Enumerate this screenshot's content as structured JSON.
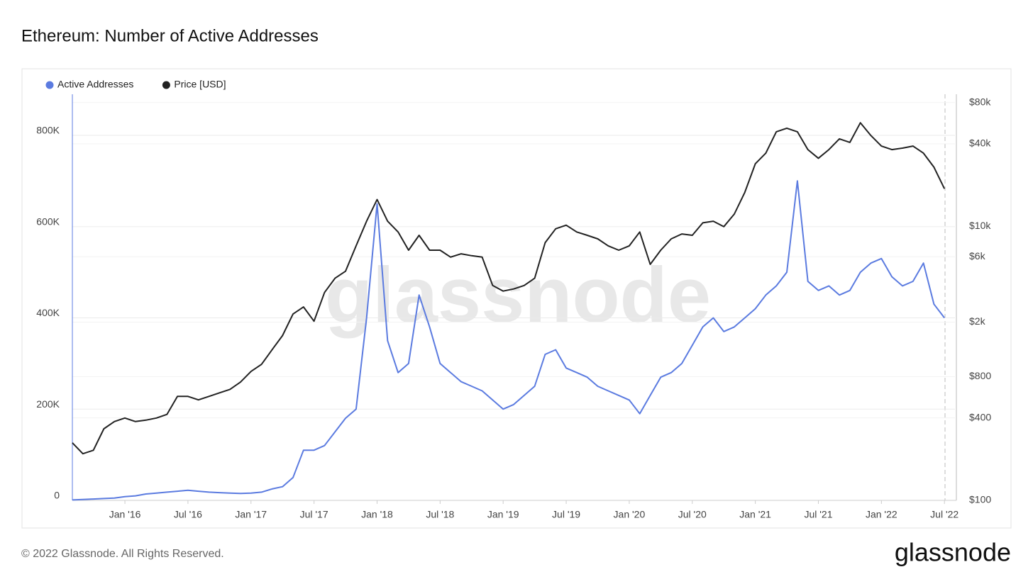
{
  "chart_data": {
    "type": "line",
    "title": "Ethereum: Number of Active Addresses",
    "watermark": "glassnode",
    "legend": "top-left",
    "grid": true,
    "x": [
      "2015-08",
      "2015-09",
      "2015-10",
      "2015-11",
      "2015-12",
      "2016-01",
      "2016-02",
      "2016-03",
      "2016-04",
      "2016-05",
      "2016-06",
      "2016-07",
      "2016-08",
      "2016-09",
      "2016-10",
      "2016-11",
      "2016-12",
      "2017-01",
      "2017-02",
      "2017-03",
      "2017-04",
      "2017-05",
      "2017-06",
      "2017-07",
      "2017-08",
      "2017-09",
      "2017-10",
      "2017-11",
      "2017-12",
      "2018-01",
      "2018-02",
      "2018-03",
      "2018-04",
      "2018-05",
      "2018-06",
      "2018-07",
      "2018-08",
      "2018-09",
      "2018-10",
      "2018-11",
      "2018-12",
      "2019-01",
      "2019-02",
      "2019-03",
      "2019-04",
      "2019-05",
      "2019-06",
      "2019-07",
      "2019-08",
      "2019-09",
      "2019-10",
      "2019-11",
      "2019-12",
      "2020-01",
      "2020-02",
      "2020-03",
      "2020-04",
      "2020-05",
      "2020-06",
      "2020-07",
      "2020-08",
      "2020-09",
      "2020-10",
      "2020-11",
      "2020-12",
      "2021-01",
      "2021-02",
      "2021-03",
      "2021-04",
      "2021-05",
      "2021-06",
      "2021-07",
      "2021-08",
      "2021-09",
      "2021-10",
      "2021-11",
      "2021-12",
      "2022-01",
      "2022-02",
      "2022-03",
      "2022-04",
      "2022-05",
      "2022-06",
      "2022-07"
    ],
    "xlim": [
      "2015-08",
      "2022-08"
    ],
    "xticks": [
      {
        "value": "2016-01",
        "label": "Jan '16"
      },
      {
        "value": "2016-07",
        "label": "Jul '16"
      },
      {
        "value": "2017-01",
        "label": "Jan '17"
      },
      {
        "value": "2017-07",
        "label": "Jul '17"
      },
      {
        "value": "2018-01",
        "label": "Jan '18"
      },
      {
        "value": "2018-07",
        "label": "Jul '18"
      },
      {
        "value": "2019-01",
        "label": "Jan '19"
      },
      {
        "value": "2019-07",
        "label": "Jul '19"
      },
      {
        "value": "2020-01",
        "label": "Jan '20"
      },
      {
        "value": "2020-07",
        "label": "Jul '20"
      },
      {
        "value": "2021-01",
        "label": "Jan '21"
      },
      {
        "value": "2021-07",
        "label": "Jul '21"
      },
      {
        "value": "2022-01",
        "label": "Jan '22"
      },
      {
        "value": "2022-07",
        "label": "Jul '22"
      }
    ],
    "ylim": [
      0,
      890000
    ],
    "yticks": [
      0,
      {
        "value": 200000,
        "label": "200K"
      },
      {
        "value": 400000,
        "label": "400K"
      },
      {
        "value": 600000,
        "label": "600K"
      },
      {
        "value": 800000,
        "label": "800K"
      }
    ],
    "y2scale": "log",
    "y2lim": [
      100,
      92000
    ],
    "y2ticks": [
      {
        "value": 100,
        "label": "$100"
      },
      {
        "value": 400,
        "label": "$400"
      },
      {
        "value": 800,
        "label": "$800"
      },
      {
        "value": 2000,
        "label": "$2k"
      },
      {
        "value": 6000,
        "label": "$6k"
      },
      {
        "value": 10000,
        "label": "$10k"
      },
      {
        "value": 40000,
        "label": "$40k"
      },
      {
        "value": 80000,
        "label": "$80k"
      }
    ],
    "series": [
      {
        "name": "Active Addresses",
        "color": "#5b7be0",
        "values": [
          1000,
          2000,
          3000,
          4000,
          5000,
          8000,
          10000,
          14000,
          16000,
          18000,
          20000,
          22000,
          20000,
          18000,
          17000,
          16000,
          15000,
          16000,
          18000,
          25000,
          30000,
          50000,
          110000,
          110000,
          120000,
          150000,
          180000,
          200000,
          400000,
          650000,
          350000,
          280000,
          300000,
          450000,
          380000,
          300000,
          280000,
          260000,
          250000,
          240000,
          220000,
          200000,
          210000,
          230000,
          250000,
          320000,
          330000,
          290000,
          280000,
          270000,
          250000,
          240000,
          230000,
          220000,
          190000,
          230000,
          270000,
          280000,
          300000,
          340000,
          380000,
          400000,
          370000,
          380000,
          400000,
          420000,
          450000,
          470000,
          500000,
          700000,
          480000,
          460000,
          470000,
          450000,
          460000,
          500000,
          520000,
          530000,
          490000,
          470000,
          480000,
          520000,
          430000,
          400000
        ]
      },
      {
        "name": "Price [USD]",
        "color": "#222222",
        "axis": "y2",
        "values": [
          263,
          219,
          232,
          333,
          376,
          399,
          376,
          385,
          399,
          424,
          574,
          574,
          541,
          574,
          609,
          646,
          730,
          873,
          983,
          1255,
          1595,
          2290,
          2580,
          2030,
          3290,
          4180,
          4700,
          7200,
          10900,
          15700,
          10900,
          9100,
          6700,
          8600,
          6700,
          6700,
          5960,
          6300,
          6100,
          5960,
          3700,
          3370,
          3490,
          3700,
          4180,
          7600,
          9600,
          10200,
          9100,
          8600,
          8100,
          7200,
          6700,
          7200,
          9100,
          5280,
          6700,
          8100,
          8800,
          8600,
          10600,
          10900,
          9950,
          12300,
          17700,
          28600,
          34200,
          49000,
          52000,
          49000,
          36300,
          31400,
          36300,
          43500,
          41000,
          57000,
          46000,
          38500,
          36300,
          37200,
          38500,
          34200,
          27000,
          18800
        ]
      }
    ]
  },
  "footer": {
    "copyright": "© 2022 Glassnode. All Rights Reserved.",
    "logo": "glassnode"
  }
}
